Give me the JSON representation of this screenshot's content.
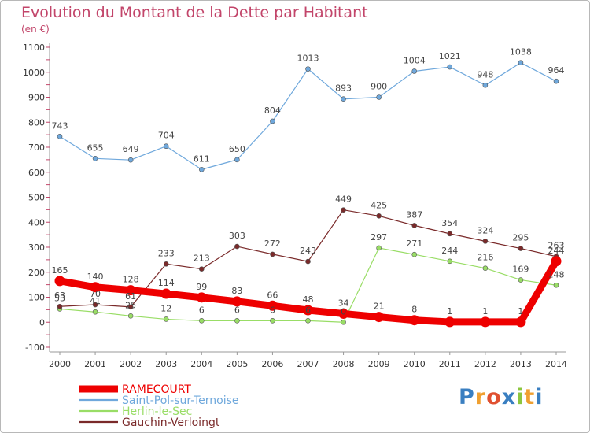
{
  "chart_data": {
    "type": "line",
    "title": "Evolution du Montant de la Dette par Habitant",
    "subtitle": "(en €)",
    "x": [
      "2000",
      "2001",
      "2002",
      "2003",
      "2004",
      "2005",
      "2006",
      "2007",
      "2008",
      "2009",
      "2010",
      "2011",
      "2012",
      "2013",
      "2014"
    ],
    "ylim": [
      -100,
      1100
    ],
    "yticks": [
      -100,
      0,
      100,
      200,
      300,
      400,
      500,
      600,
      700,
      800,
      900,
      1000,
      1100
    ],
    "grid": false,
    "legend": "bottom-left",
    "series": [
      {
        "name": "RAMECOURT",
        "color": "#ee0000",
        "values": [
          165,
          140,
          128,
          114,
          99,
          83,
          66,
          48,
          34,
          21,
          8,
          1,
          1,
          1,
          244
        ]
      },
      {
        "name": "Saint-Pol-sur-Ternoise",
        "color": "#6fa8dc",
        "values": [
          743,
          655,
          649,
          704,
          611,
          650,
          804,
          1013,
          893,
          900,
          1004,
          1021,
          948,
          1038,
          964
        ]
      },
      {
        "name": "Herlin-le-Sec",
        "color": "#99dd66",
        "values": [
          53,
          41,
          25,
          12,
          6,
          6,
          6,
          6,
          0,
          297,
          271,
          244,
          216,
          169,
          148
        ]
      },
      {
        "name": "Gauchin-Verloingt",
        "color": "#7a2a2a",
        "values": [
          63,
          70,
          61,
          233,
          213,
          303,
          272,
          243,
          449,
          425,
          387,
          354,
          324,
          295,
          263
        ]
      }
    ]
  },
  "logo": {
    "letters": [
      "P",
      "r",
      "o",
      "x",
      "i",
      "t",
      "i"
    ],
    "colors": [
      "#3a7fc1",
      "#f0a030",
      "#e05030",
      "#3a7fc1",
      "#8cc63f",
      "#f0a030",
      "#3a7fc1"
    ]
  }
}
